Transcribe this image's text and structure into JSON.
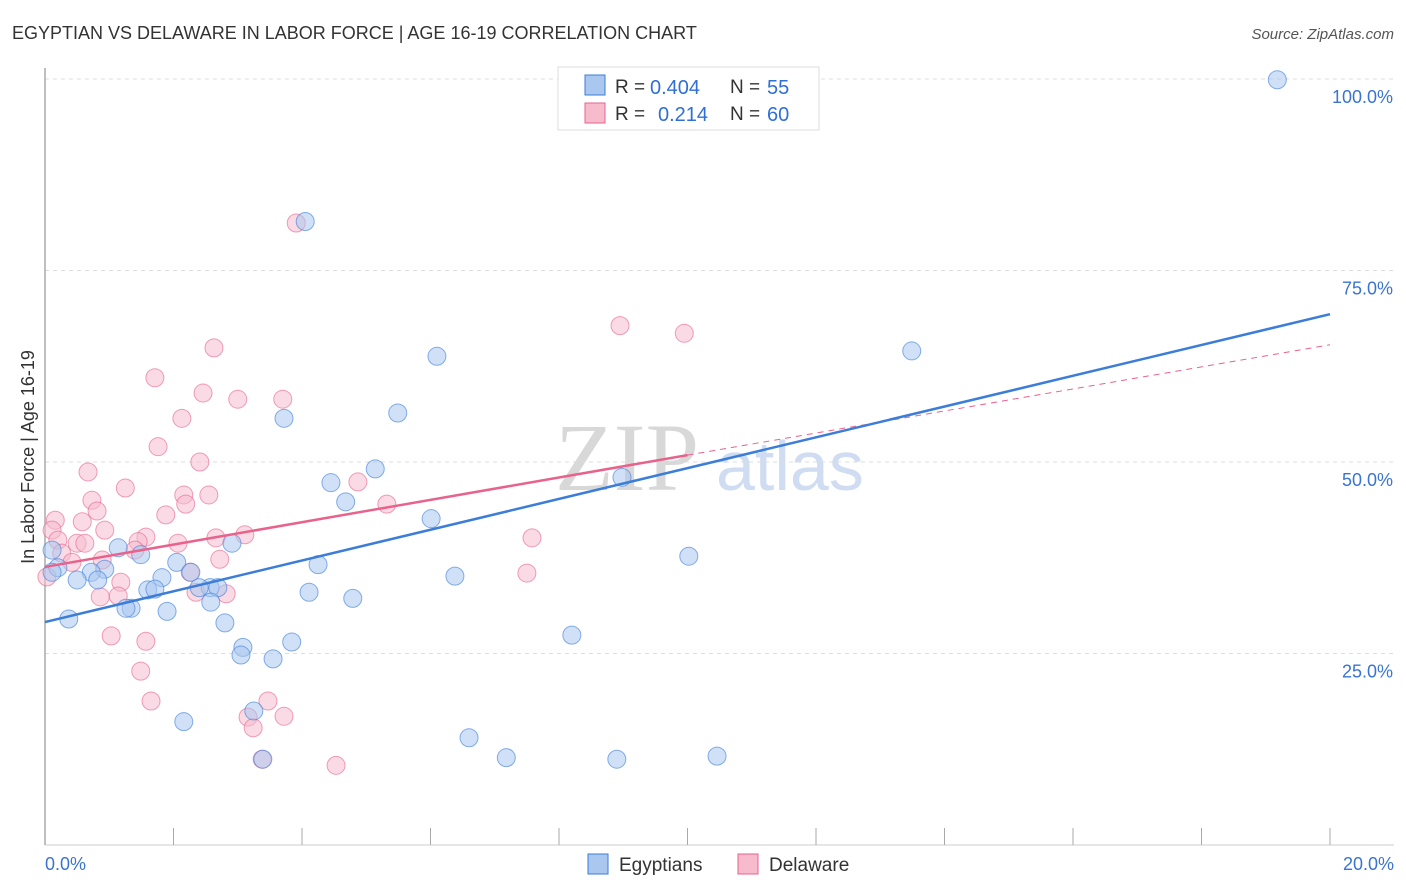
{
  "chart_data": {
    "type": "scatter",
    "title": "EGYPTIAN VS DELAWARE IN LABOR FORCE | AGE 16-19 CORRELATION CHART",
    "source": "Source: ZipAtlas.com",
    "xlabel": "",
    "ylabel": "In Labor Force | Age 16-19",
    "xlim": [
      0,
      20
    ],
    "ylim": [
      0,
      100
    ],
    "x_tick_labels": [
      "0.0%",
      "20.0%"
    ],
    "y_ticks": [
      25,
      50,
      75,
      100
    ],
    "y_tick_labels": [
      "25.0%",
      "50.0%",
      "75.0%",
      "100.0%"
    ],
    "grid": true,
    "watermark": "ZIPatlas",
    "legend_top": [
      {
        "r_label": "R =",
        "r": "0.404",
        "n_label": "N =",
        "n": "55"
      },
      {
        "r_label": "R =",
        "r": "0.214",
        "n_label": "N =",
        "n": "60"
      }
    ],
    "series": [
      {
        "name": "Egyptians",
        "color": "#3b7dd8",
        "fill": "#a9c7ef",
        "trend": {
          "x": [
            0,
            20
          ],
          "y": [
            29.1,
            69.3
          ]
        },
        "points": [
          [
            8.44,
            99.9
          ],
          [
            19.18,
            99.9
          ],
          [
            4.05,
            81.4
          ],
          [
            6.1,
            63.8
          ],
          [
            13.49,
            64.5
          ],
          [
            5.49,
            56.4
          ],
          [
            3.72,
            55.7
          ],
          [
            5.14,
            49.1
          ],
          [
            4.45,
            47.3
          ],
          [
            4.68,
            44.8
          ],
          [
            6.01,
            42.6
          ],
          [
            8.98,
            48.0
          ],
          [
            10.02,
            37.7
          ],
          [
            2.91,
            39.4
          ],
          [
            1.49,
            37.9
          ],
          [
            1.14,
            38.8
          ],
          [
            2.05,
            36.9
          ],
          [
            0.93,
            36.0
          ],
          [
            0.72,
            35.6
          ],
          [
            0.2,
            36.2
          ],
          [
            0.11,
            35.6
          ],
          [
            0.5,
            34.6
          ],
          [
            0.82,
            34.6
          ],
          [
            1.82,
            34.9
          ],
          [
            1.6,
            33.3
          ],
          [
            1.71,
            33.4
          ],
          [
            2.27,
            35.6
          ],
          [
            2.57,
            33.6
          ],
          [
            2.69,
            33.6
          ],
          [
            2.4,
            33.6
          ],
          [
            2.58,
            31.7
          ],
          [
            1.34,
            30.9
          ],
          [
            1.26,
            30.9
          ],
          [
            1.9,
            30.5
          ],
          [
            4.25,
            36.6
          ],
          [
            4.11,
            33.0
          ],
          [
            4.79,
            32.2
          ],
          [
            6.38,
            35.1
          ],
          [
            0.37,
            29.5
          ],
          [
            2.8,
            29.0
          ],
          [
            3.08,
            25.8
          ],
          [
            3.05,
            24.8
          ],
          [
            3.84,
            26.5
          ],
          [
            3.55,
            24.3
          ],
          [
            8.2,
            27.4
          ],
          [
            3.25,
            17.5
          ],
          [
            2.16,
            16.1
          ],
          [
            6.6,
            14.0
          ],
          [
            7.18,
            11.4
          ],
          [
            8.9,
            11.2
          ],
          [
            10.46,
            11.6
          ],
          [
            3.39,
            11.2
          ],
          [
            0.11,
            38.5
          ]
        ]
      },
      {
        "name": "Delaware",
        "color": "#e8628c",
        "fill": "#f6bccd",
        "trend": {
          "x": [
            0,
            10
          ],
          "y": [
            36.3,
            50.9
          ]
        },
        "trend_extended": {
          "x": [
            10,
            20
          ],
          "y": [
            50.9,
            65.3
          ]
        },
        "points": [
          [
            3.91,
            81.2
          ],
          [
            8.95,
            67.8
          ],
          [
            9.95,
            66.8
          ],
          [
            2.63,
            64.9
          ],
          [
            1.71,
            61.0
          ],
          [
            2.46,
            59.0
          ],
          [
            3.0,
            58.2
          ],
          [
            3.7,
            58.2
          ],
          [
            2.13,
            55.7
          ],
          [
            1.76,
            52.0
          ],
          [
            2.41,
            50.0
          ],
          [
            0.67,
            48.7
          ],
          [
            4.87,
            47.4
          ],
          [
            1.25,
            46.6
          ],
          [
            0.73,
            45.0
          ],
          [
            2.16,
            45.7
          ],
          [
            2.55,
            45.7
          ],
          [
            2.19,
            44.5
          ],
          [
            5.32,
            44.5
          ],
          [
            0.81,
            43.6
          ],
          [
            1.88,
            43.1
          ],
          [
            0.16,
            42.4
          ],
          [
            0.58,
            42.2
          ],
          [
            0.93,
            41.1
          ],
          [
            0.11,
            41.1
          ],
          [
            3.11,
            40.5
          ],
          [
            1.57,
            40.2
          ],
          [
            2.66,
            40.1
          ],
          [
            0.2,
            39.8
          ],
          [
            0.5,
            39.4
          ],
          [
            0.62,
            39.4
          ],
          [
            1.45,
            39.6
          ],
          [
            2.07,
            39.4
          ],
          [
            7.58,
            40.1
          ],
          [
            1.4,
            38.5
          ],
          [
            0.26,
            38.1
          ],
          [
            0.89,
            37.2
          ],
          [
            0.42,
            36.9
          ],
          [
            2.72,
            37.3
          ],
          [
            2.26,
            35.6
          ],
          [
            7.5,
            35.5
          ],
          [
            0.03,
            35.0
          ],
          [
            1.18,
            34.3
          ],
          [
            2.35,
            33.0
          ],
          [
            2.82,
            32.8
          ],
          [
            1.14,
            32.5
          ],
          [
            0.86,
            32.4
          ],
          [
            1.03,
            27.3
          ],
          [
            1.57,
            26.6
          ],
          [
            1.49,
            22.7
          ],
          [
            1.65,
            18.8
          ],
          [
            3.47,
            18.8
          ],
          [
            3.16,
            16.7
          ],
          [
            3.72,
            16.8
          ],
          [
            3.24,
            15.3
          ],
          [
            3.38,
            11.2
          ],
          [
            4.53,
            10.4
          ]
        ]
      }
    ]
  }
}
